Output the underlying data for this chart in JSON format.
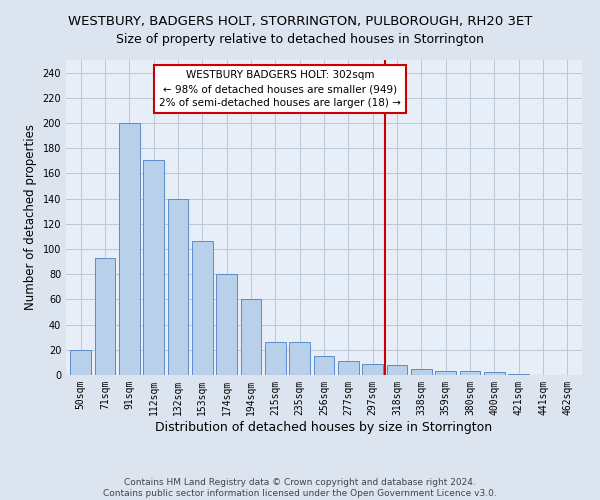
{
  "title": "WESTBURY, BADGERS HOLT, STORRINGTON, PULBOROUGH, RH20 3ET",
  "subtitle": "Size of property relative to detached houses in Storrington",
  "xlabel": "Distribution of detached houses by size in Storrington",
  "ylabel": "Number of detached properties",
  "bar_labels": [
    "50sqm",
    "71sqm",
    "91sqm",
    "112sqm",
    "132sqm",
    "153sqm",
    "174sqm",
    "194sqm",
    "215sqm",
    "235sqm",
    "256sqm",
    "277sqm",
    "297sqm",
    "318sqm",
    "338sqm",
    "359sqm",
    "380sqm",
    "400sqm",
    "421sqm",
    "441sqm",
    "462sqm"
  ],
  "bar_values": [
    20,
    93,
    200,
    171,
    140,
    106,
    80,
    60,
    26,
    26,
    15,
    11,
    9,
    8,
    5,
    3,
    3,
    2,
    1,
    0,
    0
  ],
  "bar_color": "#b8d0ea",
  "bar_edge_color": "#5b8cc8",
  "vline_x_index": 12.5,
  "vline_color": "#cc0000",
  "annotation_text": "WESTBURY BADGERS HOLT: 302sqm\n← 98% of detached houses are smaller (949)\n2% of semi-detached houses are larger (18) →",
  "annotation_box_color": "#ffffff",
  "annotation_box_edge": "#cc0000",
  "ylim": [
    0,
    250
  ],
  "yticks": [
    0,
    20,
    40,
    60,
    80,
    100,
    120,
    140,
    160,
    180,
    200,
    220,
    240
  ],
  "bg_color": "#dce4f0",
  "plot_bg_color": "#e8eef8",
  "footer_text": "Contains HM Land Registry data © Crown copyright and database right 2024.\nContains public sector information licensed under the Open Government Licence v3.0.",
  "title_fontsize": 9.5,
  "subtitle_fontsize": 9,
  "xlabel_fontsize": 9,
  "ylabel_fontsize": 8.5,
  "tick_fontsize": 7,
  "annotation_fontsize": 7.5,
  "footer_fontsize": 6.5
}
